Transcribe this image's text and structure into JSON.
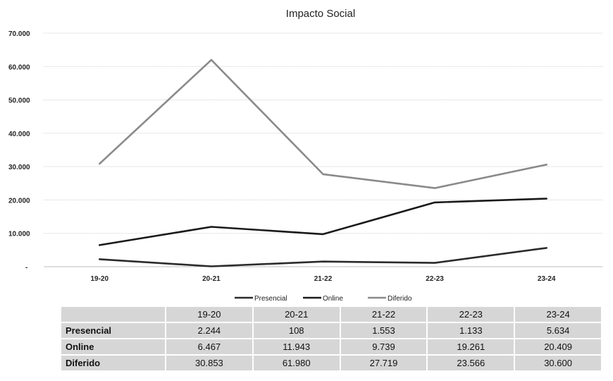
{
  "chart_data": {
    "type": "line",
    "title": "Impacto Social",
    "categories": [
      "19-20",
      "20-21",
      "21-22",
      "22-23",
      "23-24"
    ],
    "series": [
      {
        "name": "Presencial",
        "values": [
          2244,
          108,
          1553,
          1133,
          5634
        ],
        "color": "#2b2b2b"
      },
      {
        "name": "Online",
        "values": [
          6467,
          11943,
          9739,
          19261,
          20409
        ],
        "color": "#1a1a1a"
      },
      {
        "name": "Diferido",
        "values": [
          30853,
          61980,
          27719,
          23566,
          30600
        ],
        "color": "#8a8a8a"
      }
    ],
    "ylim": [
      0,
      70000
    ],
    "yticks": [
      {
        "value": 0,
        "label": "-"
      },
      {
        "value": 10000,
        "label": "10.000"
      },
      {
        "value": 20000,
        "label": "20.000"
      },
      {
        "value": 30000,
        "label": "30.000"
      },
      {
        "value": 40000,
        "label": "40.000"
      },
      {
        "value": 50000,
        "label": "50.000"
      },
      {
        "value": 60000,
        "label": "60.000"
      },
      {
        "value": 70000,
        "label": "70.000"
      }
    ],
    "grid": true,
    "legend": "bottom"
  },
  "table": {
    "headers": [
      "19-20",
      "20-21",
      "21-22",
      "22-23",
      "23-24"
    ],
    "rows": [
      {
        "label": "Presencial",
        "cells": [
          "2.244",
          "108",
          "1.553",
          "1.133",
          "5.634"
        ]
      },
      {
        "label": "Online",
        "cells": [
          "6.467",
          "11.943",
          "9.739",
          "19.261",
          "20.409"
        ]
      },
      {
        "label": "Diferido",
        "cells": [
          "30.853",
          "61.980",
          "27.719",
          "23.566",
          "30.600"
        ]
      }
    ]
  }
}
